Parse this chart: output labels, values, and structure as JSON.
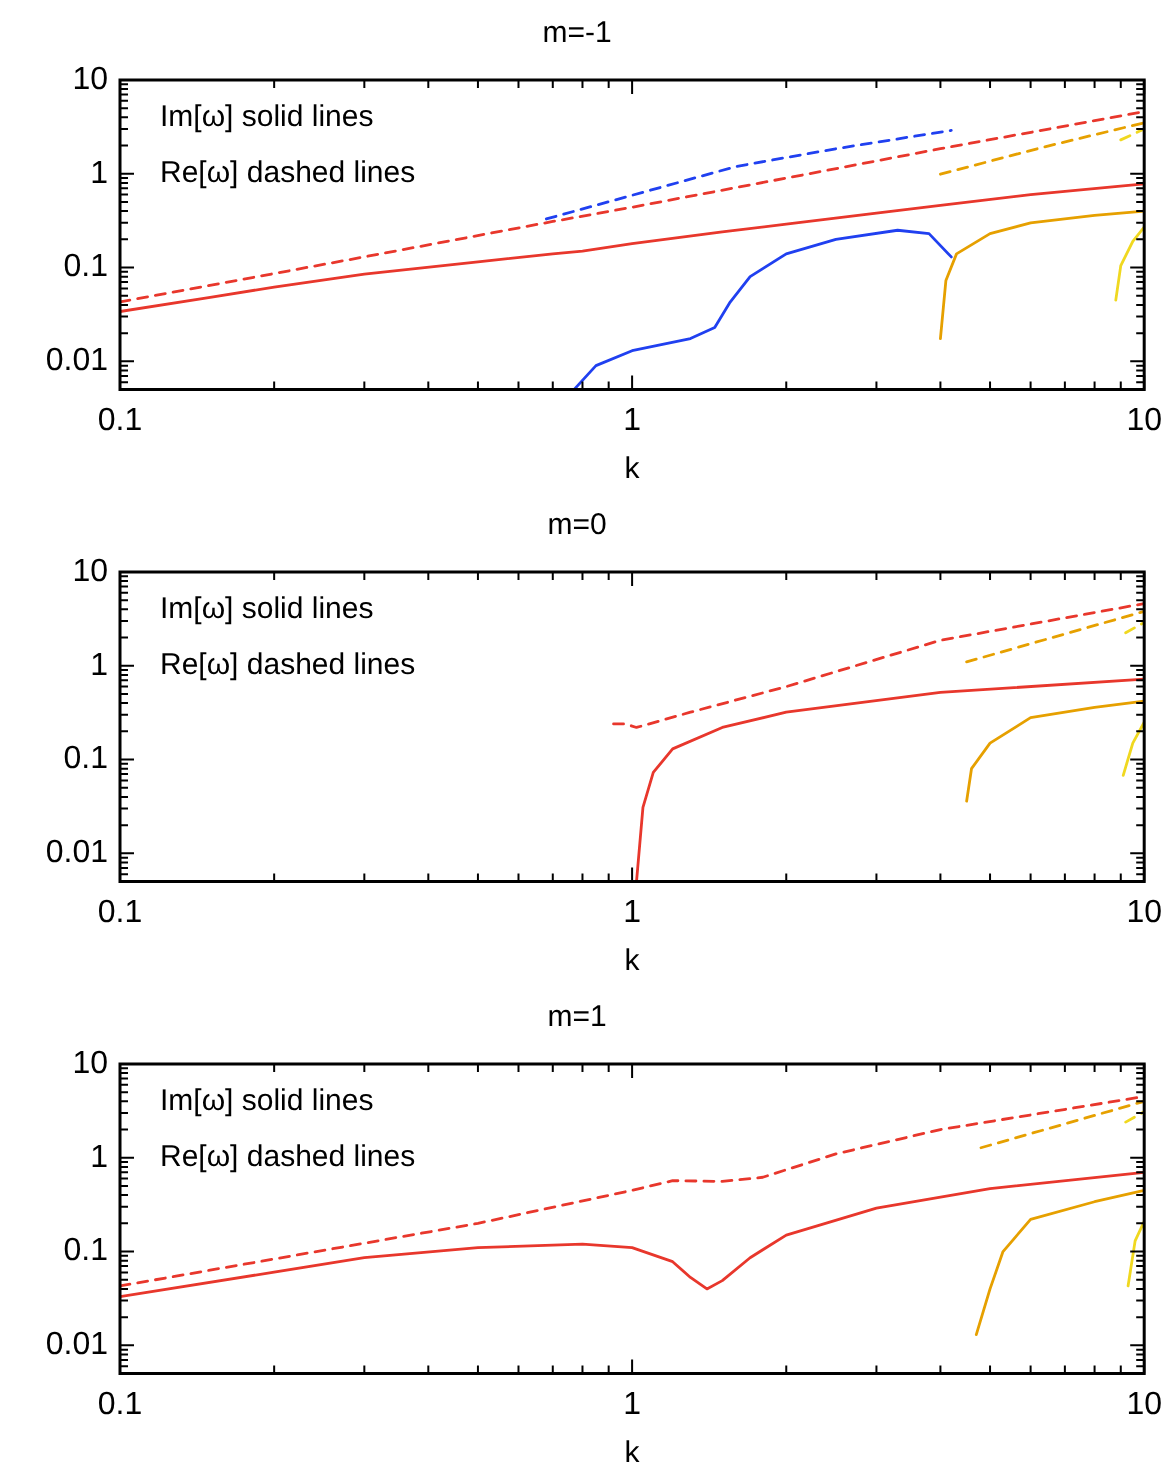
{
  "chart_data": [
    {
      "type": "line",
      "title": "m=-1",
      "xlabel": "k",
      "log": "xy",
      "xlim": [
        0.1,
        10
      ],
      "ylim": [
        0.005,
        10
      ],
      "xticks": [
        0.1,
        {
          "value": 0.2,
          "label": null
        },
        {
          "value": 0.3,
          "label": null
        },
        {
          "value": 0.4,
          "label": null
        },
        {
          "value": 0.5,
          "label": null
        },
        {
          "value": 0.6,
          "label": null
        },
        {
          "value": 0.7,
          "label": null
        },
        {
          "value": 0.8,
          "label": null
        },
        {
          "value": 0.9,
          "label": null
        },
        1,
        {
          "value": 2,
          "label": null
        },
        {
          "value": 3,
          "label": null
        },
        {
          "value": 4,
          "label": null
        },
        {
          "value": 5,
          "label": null
        },
        {
          "value": 6,
          "label": null
        },
        {
          "value": 7,
          "label": null
        },
        {
          "value": 8,
          "label": null
        },
        {
          "value": 9,
          "label": null
        },
        10
      ],
      "yticks": [
        {
          "value": 0.006,
          "label": null
        },
        {
          "value": 0.007,
          "label": null
        },
        {
          "value": 0.008,
          "label": null
        },
        {
          "value": 0.009,
          "label": null
        },
        0.01,
        {
          "value": 0.02,
          "label": null
        },
        {
          "value": 0.03,
          "label": null
        },
        {
          "value": 0.04,
          "label": null
        },
        {
          "value": 0.05,
          "label": null
        },
        {
          "value": 0.06,
          "label": null
        },
        {
          "value": 0.07,
          "label": null
        },
        {
          "value": 0.08,
          "label": null
        },
        {
          "value": 0.09,
          "label": null
        },
        0.1,
        {
          "value": 0.2,
          "label": null
        },
        {
          "value": 0.3,
          "label": null
        },
        {
          "value": 0.4,
          "label": null
        },
        {
          "value": 0.5,
          "label": null
        },
        {
          "value": 0.6,
          "label": null
        },
        {
          "value": 0.7,
          "label": null
        },
        {
          "value": 0.8,
          "label": null
        },
        {
          "value": 0.9,
          "label": null
        },
        1,
        {
          "value": 2,
          "label": null
        },
        {
          "value": 3,
          "label": null
        },
        {
          "value": 4,
          "label": null
        },
        {
          "value": 5,
          "label": null
        },
        {
          "value": 6,
          "label": null
        },
        {
          "value": 7,
          "label": null
        },
        {
          "value": 8,
          "label": null
        },
        {
          "value": 9,
          "label": null
        },
        10
      ],
      "annotations": [
        "Im[ω] solid lines",
        "Re[ω] dashed lines"
      ],
      "series": [
        {
          "color": "#e8372c",
          "line_style": "solid",
          "x": [
            0.1,
            0.15,
            0.2,
            0.3,
            0.5,
            0.7,
            0.8,
            1,
            1.5,
            2,
            3,
            4,
            6,
            10
          ],
          "values": [
            0.034,
            0.048,
            0.062,
            0.085,
            0.115,
            0.14,
            0.15,
            0.18,
            0.24,
            0.29,
            0.38,
            0.46,
            0.6,
            0.78
          ]
        },
        {
          "color": "#e8372c",
          "line_style": "dashed",
          "x": [
            0.1,
            0.3,
            0.7,
            1,
            2,
            4,
            10
          ],
          "values": [
            0.043,
            0.13,
            0.31,
            0.44,
            0.9,
            1.85,
            4.6
          ]
        },
        {
          "color": "#2040f0",
          "line_style": "dashed",
          "x": [
            0.68,
            1,
            1.6,
            2.5,
            4.2
          ],
          "values": [
            0.33,
            0.59,
            1.2,
            1.85,
            2.9
          ]
        },
        {
          "color": "#2040f0",
          "line_style": "solid",
          "x": [
            0.77,
            0.85,
            1,
            1.3,
            1.45,
            1.55,
            1.7,
            2,
            2.5,
            3.3,
            3.8,
            4.2
          ],
          "values": [
            0.005,
            0.009,
            0.013,
            0.0175,
            0.023,
            0.042,
            0.08,
            0.14,
            0.2,
            0.25,
            0.23,
            0.13
          ]
        },
        {
          "color": "#e6a000",
          "line_style": "solid",
          "x": [
            4,
            4.1,
            4.3,
            5,
            6,
            8,
            10
          ],
          "values": [
            0.0175,
            0.073,
            0.14,
            0.23,
            0.3,
            0.36,
            0.4
          ]
        },
        {
          "color": "#e6a000",
          "line_style": "dashed",
          "x": [
            4,
            6.3,
            10
          ],
          "values": [
            0.99,
            1.9,
            3.5
          ]
        },
        {
          "color": "#f0d820",
          "line_style": "solid",
          "x": [
            8.8,
            9,
            9.5,
            10
          ],
          "values": [
            0.045,
            0.105,
            0.19,
            0.27
          ]
        },
        {
          "color": "#f0d820",
          "line_style": "dashed",
          "x": [
            9,
            10
          ],
          "values": [
            2.3,
            3.0
          ]
        }
      ]
    },
    {
      "type": "line",
      "title": "m=0",
      "xlabel": "k",
      "log": "xy",
      "xlim": [
        0.1,
        10
      ],
      "ylim": [
        0.005,
        10
      ],
      "xticks": [
        0.1,
        {
          "value": 0.2,
          "label": null
        },
        {
          "value": 0.3,
          "label": null
        },
        {
          "value": 0.4,
          "label": null
        },
        {
          "value": 0.5,
          "label": null
        },
        {
          "value": 0.6,
          "label": null
        },
        {
          "value": 0.7,
          "label": null
        },
        {
          "value": 0.8,
          "label": null
        },
        {
          "value": 0.9,
          "label": null
        },
        1,
        {
          "value": 2,
          "label": null
        },
        {
          "value": 3,
          "label": null
        },
        {
          "value": 4,
          "label": null
        },
        {
          "value": 5,
          "label": null
        },
        {
          "value": 6,
          "label": null
        },
        {
          "value": 7,
          "label": null
        },
        {
          "value": 8,
          "label": null
        },
        {
          "value": 9,
          "label": null
        },
        10
      ],
      "yticks": [
        {
          "value": 0.006,
          "label": null
        },
        {
          "value": 0.007,
          "label": null
        },
        {
          "value": 0.008,
          "label": null
        },
        {
          "value": 0.009,
          "label": null
        },
        0.01,
        {
          "value": 0.02,
          "label": null
        },
        {
          "value": 0.03,
          "label": null
        },
        {
          "value": 0.04,
          "label": null
        },
        {
          "value": 0.05,
          "label": null
        },
        {
          "value": 0.06,
          "label": null
        },
        {
          "value": 0.07,
          "label": null
        },
        {
          "value": 0.08,
          "label": null
        },
        {
          "value": 0.09,
          "label": null
        },
        0.1,
        {
          "value": 0.2,
          "label": null
        },
        {
          "value": 0.3,
          "label": null
        },
        {
          "value": 0.4,
          "label": null
        },
        {
          "value": 0.5,
          "label": null
        },
        {
          "value": 0.6,
          "label": null
        },
        {
          "value": 0.7,
          "label": null
        },
        {
          "value": 0.8,
          "label": null
        },
        {
          "value": 0.9,
          "label": null
        },
        1,
        {
          "value": 2,
          "label": null
        },
        {
          "value": 3,
          "label": null
        },
        {
          "value": 4,
          "label": null
        },
        {
          "value": 5,
          "label": null
        },
        {
          "value": 6,
          "label": null
        },
        {
          "value": 7,
          "label": null
        },
        {
          "value": 8,
          "label": null
        },
        {
          "value": 9,
          "label": null
        },
        10
      ],
      "annotations": [
        "Im[ω] solid lines",
        "Re[ω] dashed lines"
      ],
      "series": [
        {
          "color": "#e8372c",
          "line_style": "dashed",
          "x": [
            0.92,
            0.97,
            1.02,
            1.3,
            2,
            4,
            10
          ],
          "values": [
            0.24,
            0.24,
            0.22,
            0.32,
            0.6,
            1.87,
            4.6
          ]
        },
        {
          "color": "#e8372c",
          "line_style": "solid",
          "x": [
            1.02,
            1.05,
            1.1,
            1.2,
            1.5,
            2,
            4,
            10
          ],
          "values": [
            0.005,
            0.031,
            0.073,
            0.13,
            0.22,
            0.32,
            0.52,
            0.72
          ]
        },
        {
          "color": "#e6a000",
          "line_style": "solid",
          "x": [
            4.5,
            4.6,
            5,
            6,
            8,
            10
          ],
          "values": [
            0.036,
            0.08,
            0.15,
            0.28,
            0.36,
            0.42
          ]
        },
        {
          "color": "#e6a000",
          "line_style": "dashed",
          "x": [
            4.5,
            10
          ],
          "values": [
            1.1,
            3.8
          ]
        },
        {
          "color": "#f0d820",
          "line_style": "solid",
          "x": [
            9.1,
            9.5,
            10
          ],
          "values": [
            0.068,
            0.15,
            0.25
          ]
        },
        {
          "color": "#f0d820",
          "line_style": "dashed",
          "x": [
            9.2,
            10
          ],
          "values": [
            2.25,
            2.9
          ]
        }
      ]
    },
    {
      "type": "line",
      "title": "m=1",
      "xlabel": "k",
      "log": "xy",
      "xlim": [
        0.1,
        10
      ],
      "ylim": [
        0.005,
        10
      ],
      "xticks": [
        0.1,
        {
          "value": 0.2,
          "label": null
        },
        {
          "value": 0.3,
          "label": null
        },
        {
          "value": 0.4,
          "label": null
        },
        {
          "value": 0.5,
          "label": null
        },
        {
          "value": 0.6,
          "label": null
        },
        {
          "value": 0.7,
          "label": null
        },
        {
          "value": 0.8,
          "label": null
        },
        {
          "value": 0.9,
          "label": null
        },
        1,
        {
          "value": 2,
          "label": null
        },
        {
          "value": 3,
          "label": null
        },
        {
          "value": 4,
          "label": null
        },
        {
          "value": 5,
          "label": null
        },
        {
          "value": 6,
          "label": null
        },
        {
          "value": 7,
          "label": null
        },
        {
          "value": 8,
          "label": null
        },
        {
          "value": 9,
          "label": null
        },
        10
      ],
      "yticks": [
        {
          "value": 0.006,
          "label": null
        },
        {
          "value": 0.007,
          "label": null
        },
        {
          "value": 0.008,
          "label": null
        },
        {
          "value": 0.009,
          "label": null
        },
        0.01,
        {
          "value": 0.02,
          "label": null
        },
        {
          "value": 0.03,
          "label": null
        },
        {
          "value": 0.04,
          "label": null
        },
        {
          "value": 0.05,
          "label": null
        },
        {
          "value": 0.06,
          "label": null
        },
        {
          "value": 0.07,
          "label": null
        },
        {
          "value": 0.08,
          "label": null
        },
        {
          "value": 0.09,
          "label": null
        },
        0.1,
        {
          "value": 0.2,
          "label": null
        },
        {
          "value": 0.3,
          "label": null
        },
        {
          "value": 0.4,
          "label": null
        },
        {
          "value": 0.5,
          "label": null
        },
        {
          "value": 0.6,
          "label": null
        },
        {
          "value": 0.7,
          "label": null
        },
        {
          "value": 0.8,
          "label": null
        },
        {
          "value": 0.9,
          "label": null
        },
        1,
        {
          "value": 2,
          "label": null
        },
        {
          "value": 3,
          "label": null
        },
        {
          "value": 4,
          "label": null
        },
        {
          "value": 5,
          "label": null
        },
        {
          "value": 6,
          "label": null
        },
        {
          "value": 7,
          "label": null
        },
        {
          "value": 8,
          "label": null
        },
        {
          "value": 9,
          "label": null
        },
        10
      ],
      "annotations": [
        "Im[ω] solid lines",
        "Re[ω] dashed lines"
      ],
      "series": [
        {
          "color": "#e8372c",
          "line_style": "solid",
          "x": [
            0.1,
            0.3,
            0.5,
            0.8,
            1,
            1.2,
            1.3,
            1.4,
            1.5,
            1.7,
            2,
            3,
            5,
            10
          ],
          "values": [
            0.033,
            0.086,
            0.11,
            0.12,
            0.11,
            0.078,
            0.053,
            0.04,
            0.049,
            0.086,
            0.15,
            0.29,
            0.47,
            0.7
          ]
        },
        {
          "color": "#e8372c",
          "line_style": "dashed",
          "x": [
            0.1,
            0.5,
            1,
            1.2,
            1.5,
            1.8,
            2.5,
            4,
            10
          ],
          "values": [
            0.043,
            0.2,
            0.45,
            0.57,
            0.56,
            0.62,
            1.1,
            2.0,
            4.5
          ]
        },
        {
          "color": "#e6a000",
          "line_style": "solid",
          "x": [
            4.7,
            5,
            5.3,
            6,
            8,
            10
          ],
          "values": [
            0.013,
            0.04,
            0.1,
            0.22,
            0.34,
            0.45
          ]
        },
        {
          "color": "#e6a000",
          "line_style": "dashed",
          "x": [
            4.8,
            10
          ],
          "values": [
            1.28,
            4.0
          ]
        },
        {
          "color": "#f0d820",
          "line_style": "solid",
          "x": [
            9.3,
            9.6,
            10
          ],
          "values": [
            0.043,
            0.13,
            0.21
          ]
        },
        {
          "color": "#f0d820",
          "line_style": "dashed",
          "x": [
            9.2,
            10
          ],
          "values": [
            2.4,
            3.1
          ]
        }
      ]
    }
  ]
}
